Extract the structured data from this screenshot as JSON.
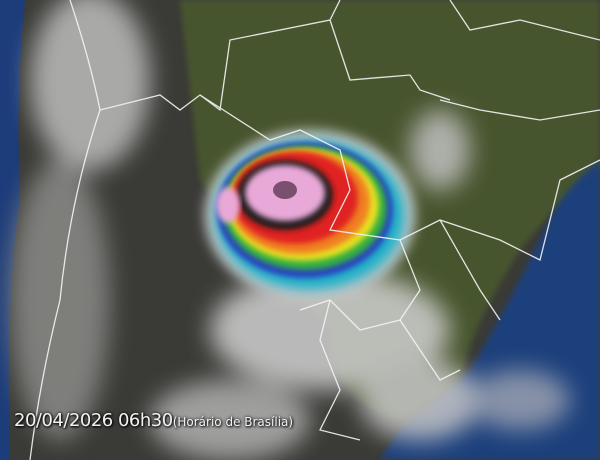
{
  "image": {
    "type": "infrared satellite image, enhanced colour",
    "colors": {
      "land": "#4a5a30",
      "ocean": "#1e3a70",
      "cloud": "#d8d8d8",
      "deep_convection_red": "#e02020",
      "core_pink": "#e8a0d8",
      "borders": "#ffffff"
    }
  },
  "timestamp": {
    "datetime": "20/04/2026 06h30",
    "timezone": "(Horário de Brasília)"
  }
}
